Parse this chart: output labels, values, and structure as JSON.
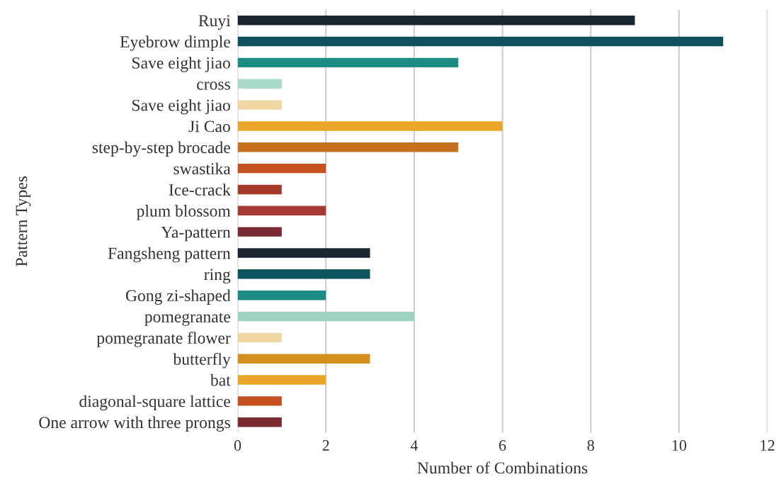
{
  "chart_data": {
    "type": "bar",
    "orientation": "horizontal",
    "xlabel": "Number of Combinations",
    "ylabel": "Pattern Types",
    "categories": [
      "Ruyi",
      "Eyebrow dimple",
      "Save eight jiao",
      "cross",
      "Save eight jiao",
      "Ji Cao",
      "step-by-step brocade",
      "swastika",
      "Ice-crack",
      "plum blossom",
      "Ya-pattern",
      "Fangsheng pattern",
      "ring",
      "Gong zi-shaped",
      "pomegranate",
      "pomegranate flower",
      "butterfly",
      "bat",
      "diagonal-square lattice",
      "One arrow with three prongs"
    ],
    "values": [
      9,
      11,
      5,
      1,
      1,
      6,
      5,
      2,
      1,
      2,
      1,
      3,
      3,
      2,
      4,
      1,
      3,
      2,
      1,
      1
    ],
    "colors": [
      "#1b2431",
      "#0f4f5e",
      "#1d8c84",
      "#a9d9c9",
      "#efd6a3",
      "#eaa62b",
      "#c66f1f",
      "#c4501f",
      "#a43a2b",
      "#a53a35",
      "#7a2b31",
      "#1b2431",
      "#0f5560",
      "#1d8c84",
      "#9fd3c0",
      "#efd6a3",
      "#d3901f",
      "#eaa62b",
      "#c4501f",
      "#7a2b31"
    ],
    "xlim": [
      0,
      12
    ],
    "xticks": [
      0,
      2,
      4,
      6,
      8,
      10,
      12
    ],
    "grid": "x"
  }
}
